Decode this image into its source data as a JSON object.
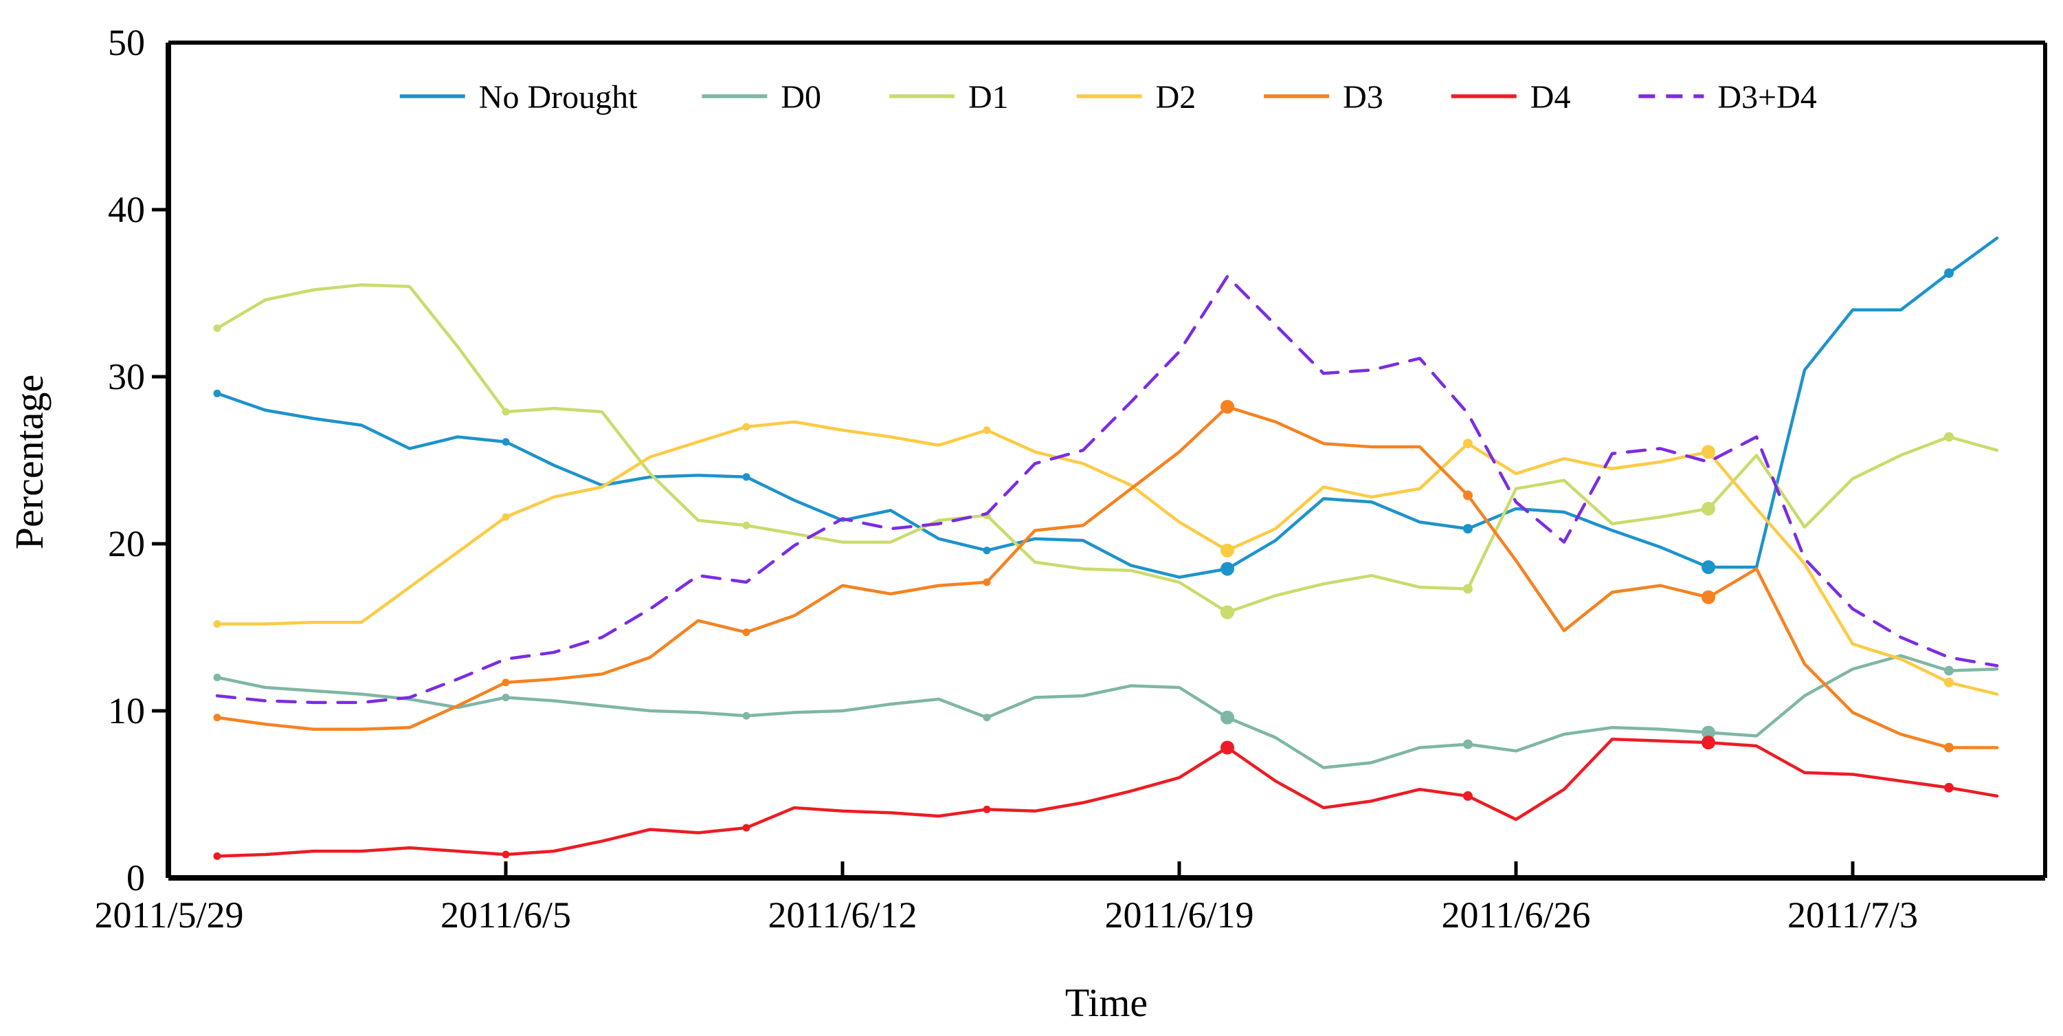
{
  "axes": {
    "y_label": "Percentage",
    "x_label": "Time",
    "y_ticks": [
      "0",
      "10",
      "20",
      "30",
      "40",
      "50"
    ],
    "x_ticks": [
      "2011/5/29",
      "2011/6/5",
      "2011/6/12",
      "2011/6/19",
      "2011/6/26",
      "2011/7/3"
    ],
    "ylim": [
      0,
      50
    ],
    "grid": "off"
  },
  "legend": {
    "position": "top-inside",
    "entries": [
      {
        "label": "No Drought",
        "color": "#1d93cb",
        "dashed": false
      },
      {
        "label": "D0",
        "color": "#7fb6a5",
        "dashed": false
      },
      {
        "label": "D1",
        "color": "#c9dc6d",
        "dashed": false
      },
      {
        "label": "D2",
        "color": "#fccb45",
        "dashed": false
      },
      {
        "label": "D3",
        "color": "#f58220",
        "dashed": false
      },
      {
        "label": "D4",
        "color": "#ed1c24",
        "dashed": false
      },
      {
        "label": "D3+D4",
        "color": "#7b2ce2",
        "dashed": true
      }
    ]
  },
  "chart_data": {
    "type": "line",
    "title": "",
    "xlabel": "Time",
    "ylabel": "Percentage",
    "ylim": [
      0,
      50
    ],
    "x_tick_labels": [
      "2011/5/29",
      "2011/6/5",
      "2011/6/12",
      "2011/6/19",
      "2011/6/26",
      "2011/7/3"
    ],
    "x": [
      "2011/5/30",
      "2011/5/31",
      "2011/6/1",
      "2011/6/2",
      "2011/6/3",
      "2011/6/4",
      "2011/6/5",
      "2011/6/6",
      "2011/6/7",
      "2011/6/8",
      "2011/6/9",
      "2011/6/10",
      "2011/6/11",
      "2011/6/12",
      "2011/6/13",
      "2011/6/14",
      "2011/6/15",
      "2011/6/16",
      "2011/6/17",
      "2011/6/18",
      "2011/6/19",
      "2011/6/20",
      "2011/6/21",
      "2011/6/22",
      "2011/6/23",
      "2011/6/24",
      "2011/6/25",
      "2011/6/26",
      "2011/6/27",
      "2011/6/28",
      "2011/6/29",
      "2011/6/30",
      "2011/7/1",
      "2011/7/2",
      "2011/7/3",
      "2011/7/4",
      "2011/7/5",
      "2011/7/6"
    ],
    "marker_indices": [
      0,
      6,
      11,
      16,
      21,
      26,
      31,
      36
    ],
    "big_marker_indices": [
      21,
      31
    ],
    "medium_marker_indices": [
      26,
      36
    ],
    "series": [
      {
        "name": "No Drought",
        "color": "#1d93cb",
        "dashed": false,
        "values": [
          29.0,
          28.0,
          27.5,
          27.1,
          25.7,
          26.4,
          26.1,
          24.7,
          23.5,
          24.0,
          24.1,
          24.0,
          22.6,
          21.4,
          22.0,
          20.3,
          19.6,
          20.3,
          20.2,
          18.7,
          18.0,
          18.5,
          20.2,
          22.7,
          22.5,
          21.3,
          20.9,
          22.1,
          21.9,
          20.8,
          19.8,
          18.6,
          18.6,
          30.4,
          34.0,
          34.0,
          36.2,
          38.3
        ]
      },
      {
        "name": "D0",
        "color": "#7fb6a5",
        "dashed": false,
        "values": [
          12.0,
          11.4,
          11.2,
          11.0,
          10.7,
          10.2,
          10.8,
          10.6,
          10.3,
          10.0,
          9.9,
          9.7,
          9.9,
          10.0,
          10.4,
          10.7,
          9.6,
          10.8,
          10.9,
          11.5,
          11.4,
          9.6,
          8.4,
          6.6,
          6.9,
          7.8,
          8.0,
          7.6,
          8.6,
          9.0,
          8.9,
          8.7,
          8.5,
          10.9,
          12.5,
          13.3,
          12.4,
          12.5
        ]
      },
      {
        "name": "D1",
        "color": "#c9dc6d",
        "dashed": false,
        "values": [
          32.9,
          34.6,
          35.2,
          35.5,
          35.4,
          31.8,
          27.9,
          28.1,
          27.9,
          24.2,
          21.4,
          21.1,
          20.6,
          20.1,
          20.1,
          21.4,
          21.7,
          18.9,
          18.5,
          18.4,
          17.7,
          15.9,
          16.9,
          17.6,
          18.1,
          17.4,
          17.3,
          23.3,
          23.8,
          21.2,
          21.6,
          22.1,
          25.3,
          21.0,
          23.9,
          25.3,
          26.4,
          25.6
        ]
      },
      {
        "name": "D2",
        "color": "#fccb45",
        "dashed": false,
        "values": [
          15.2,
          15.2,
          15.3,
          15.3,
          17.4,
          19.5,
          21.6,
          22.8,
          23.4,
          25.2,
          26.1,
          27.0,
          27.3,
          26.8,
          26.4,
          25.9,
          26.8,
          25.5,
          24.8,
          23.5,
          21.3,
          19.6,
          20.9,
          23.4,
          22.8,
          23.3,
          26.0,
          24.2,
          25.1,
          24.5,
          24.9,
          25.5,
          22.1,
          18.8,
          14.0,
          13.1,
          11.7,
          11.0
        ]
      },
      {
        "name": "D3",
        "color": "#f58220",
        "dashed": false,
        "values": [
          9.6,
          9.2,
          8.9,
          8.9,
          9.0,
          10.3,
          11.7,
          11.9,
          12.2,
          13.2,
          15.4,
          14.7,
          15.7,
          17.5,
          17.0,
          17.5,
          17.7,
          20.8,
          21.1,
          23.3,
          25.5,
          28.2,
          27.3,
          26.0,
          25.8,
          25.8,
          22.9,
          19.0,
          14.8,
          17.1,
          17.5,
          16.8,
          18.5,
          12.8,
          9.9,
          8.6,
          7.8,
          7.8
        ]
      },
      {
        "name": "D4",
        "color": "#ed1c24",
        "dashed": false,
        "values": [
          1.3,
          1.4,
          1.6,
          1.6,
          1.8,
          1.6,
          1.4,
          1.6,
          2.2,
          2.9,
          2.7,
          3.0,
          4.2,
          4.0,
          3.9,
          3.7,
          4.1,
          4.0,
          4.5,
          5.2,
          6.0,
          7.8,
          5.8,
          4.2,
          4.6,
          5.3,
          4.9,
          3.5,
          5.3,
          8.3,
          8.2,
          8.1,
          7.9,
          6.3,
          6.2,
          5.8,
          5.4,
          4.9
        ]
      },
      {
        "name": "D3+D4",
        "color": "#7b2ce2",
        "dashed": true,
        "values": [
          10.9,
          10.6,
          10.5,
          10.5,
          10.8,
          11.9,
          13.1,
          13.5,
          14.4,
          16.1,
          18.1,
          17.7,
          19.9,
          21.5,
          20.9,
          21.2,
          21.8,
          24.8,
          25.6,
          28.5,
          31.5,
          36.0,
          33.1,
          30.2,
          30.4,
          31.1,
          27.8,
          22.5,
          20.1,
          25.4,
          25.7,
          24.9,
          26.4,
          19.1,
          16.1,
          14.4,
          13.2,
          12.7
        ]
      }
    ]
  },
  "colors": {
    "axis": "#000000",
    "background": "#ffffff"
  }
}
